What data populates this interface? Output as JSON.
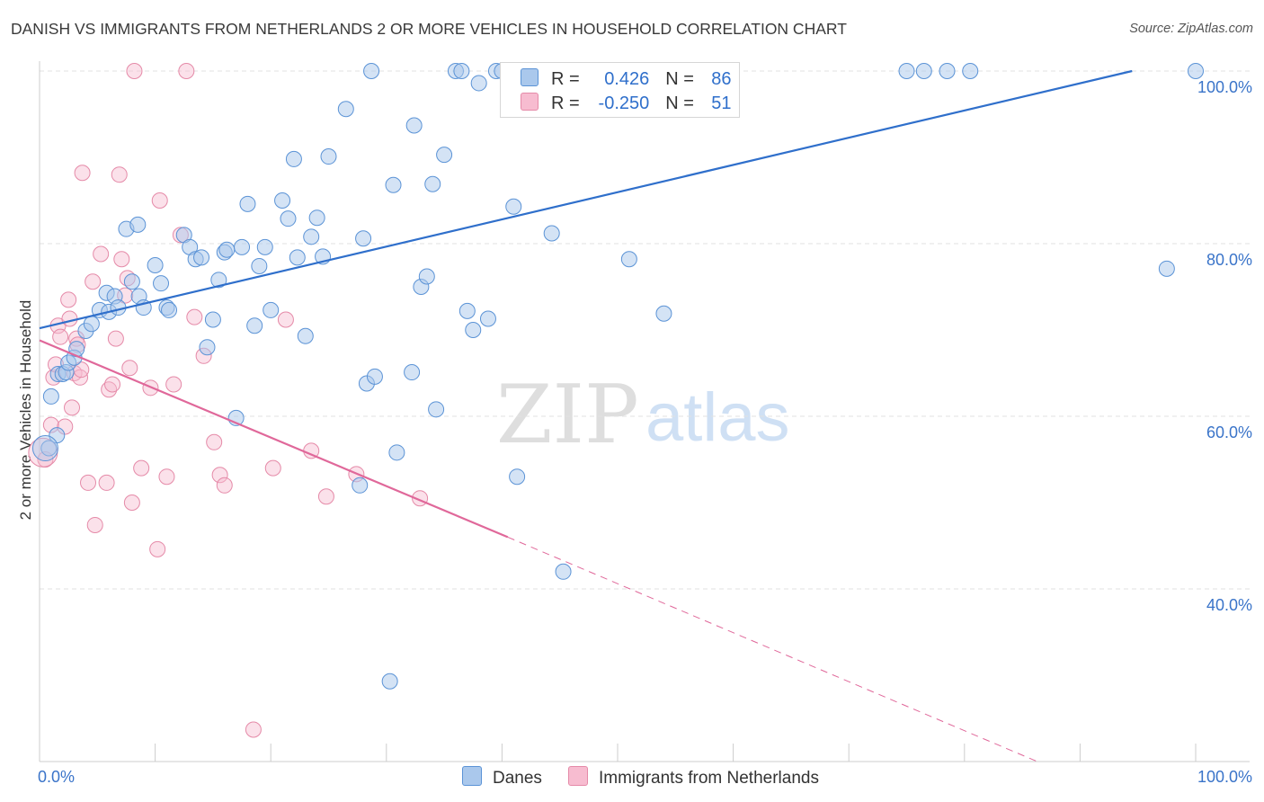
{
  "title": "DANISH VS IMMIGRANTS FROM NETHERLANDS 2 OR MORE VEHICLES IN HOUSEHOLD CORRELATION CHART",
  "source": "Source: ZipAtlas.com",
  "watermark": {
    "zip": "ZIP",
    "atlas": "atlas"
  },
  "legend": {
    "danes": {
      "r_label": "R =",
      "r_value": "0.426",
      "n_label": "N =",
      "n_value": "86"
    },
    "netherlands": {
      "r_label": "R =",
      "r_value": "-0.250",
      "n_label": "N =",
      "n_value": "51"
    }
  },
  "bottom_legend": {
    "danes": "Danes",
    "netherlands": "Immigrants from Netherlands"
  },
  "colors": {
    "danes_fill": "#aac8ec",
    "danes_stroke": "#5b93d6",
    "danes_line": "#2f6fcb",
    "nl_fill": "#f7bcd0",
    "nl_stroke": "#e58aa8",
    "nl_line": "#e0689a",
    "grid": "#e2e2e2",
    "axis": "#cccccc",
    "tick_text": "#3a74c9"
  },
  "chart_data": {
    "type": "scatter",
    "ylabel": "2 or more Vehicles in Household",
    "xlim": [
      0,
      100
    ],
    "ylim": [
      20,
      100
    ],
    "x_tick_labels": [
      {
        "value": 0,
        "label": "0.0%"
      },
      {
        "value": 100,
        "label": "100.0%"
      }
    ],
    "y_tick_labels": [
      {
        "value": 100,
        "label": "100.0%"
      },
      {
        "value": 80,
        "label": "80.0%"
      },
      {
        "value": 60,
        "label": "60.0%"
      },
      {
        "value": 40,
        "label": "40.0%"
      }
    ],
    "grid": true,
    "series": [
      {
        "name": "Danes",
        "trend": {
          "x": [
            0,
            94.5
          ],
          "y": [
            70.2,
            100
          ]
        },
        "points": [
          [
            0.8,
            56.3
          ],
          [
            1,
            62.3
          ],
          [
            1.5,
            57.8
          ],
          [
            1.6,
            64.9
          ],
          [
            2,
            64.9
          ],
          [
            2.3,
            65.1
          ],
          [
            2.5,
            66.2
          ],
          [
            3,
            66.8
          ],
          [
            3.2,
            67.8
          ],
          [
            4,
            69.9
          ],
          [
            4.5,
            70.7
          ],
          [
            5.2,
            72.3
          ],
          [
            5.8,
            74.3
          ],
          [
            6,
            72.1
          ],
          [
            6.5,
            73.9
          ],
          [
            6.8,
            72.6
          ],
          [
            7.5,
            81.7
          ],
          [
            8,
            75.6
          ],
          [
            8.5,
            82.2
          ],
          [
            8.6,
            73.9
          ],
          [
            9,
            72.6
          ],
          [
            10,
            77.5
          ],
          [
            10.5,
            75.4
          ],
          [
            11,
            72.6
          ],
          [
            11.2,
            72.3
          ],
          [
            12.5,
            81
          ],
          [
            13,
            79.6
          ],
          [
            13.5,
            78.2
          ],
          [
            14,
            78.4
          ],
          [
            14.5,
            68
          ],
          [
            15,
            71.2
          ],
          [
            15.5,
            75.8
          ],
          [
            16,
            79
          ],
          [
            16.2,
            79.3
          ],
          [
            17,
            59.8
          ],
          [
            17.5,
            79.6
          ],
          [
            18,
            84.6
          ],
          [
            18.6,
            70.5
          ],
          [
            19,
            77.4
          ],
          [
            19.5,
            79.6
          ],
          [
            20,
            72.3
          ],
          [
            21,
            85
          ],
          [
            21.5,
            82.9
          ],
          [
            22,
            89.8
          ],
          [
            22.3,
            78.4
          ],
          [
            23,
            69.3
          ],
          [
            23.5,
            80.8
          ],
          [
            24,
            83
          ],
          [
            24.5,
            78.5
          ],
          [
            25,
            90.1
          ],
          [
            26.5,
            95.6
          ],
          [
            27.7,
            52
          ],
          [
            28,
            80.6
          ],
          [
            28.3,
            63.8
          ],
          [
            28.7,
            100
          ],
          [
            29,
            64.6
          ],
          [
            30.3,
            29.3
          ],
          [
            30.6,
            86.8
          ],
          [
            30.9,
            55.8
          ],
          [
            32.2,
            65.1
          ],
          [
            32.4,
            93.7
          ],
          [
            33,
            75
          ],
          [
            33.5,
            76.2
          ],
          [
            34,
            86.9
          ],
          [
            34.3,
            60.8
          ],
          [
            35,
            90.3
          ],
          [
            36,
            100
          ],
          [
            36.5,
            100
          ],
          [
            37,
            72.2
          ],
          [
            37.5,
            70
          ],
          [
            38,
            98.6
          ],
          [
            38.8,
            71.3
          ],
          [
            39.5,
            100
          ],
          [
            40,
            100
          ],
          [
            41,
            84.3
          ],
          [
            41.3,
            53
          ],
          [
            44.3,
            81.2
          ],
          [
            45.3,
            42
          ],
          [
            50.5,
            100
          ],
          [
            51,
            78.2
          ],
          [
            54,
            71.9
          ],
          [
            75,
            100
          ],
          [
            76.5,
            100
          ],
          [
            78.5,
            100
          ],
          [
            80.5,
            100
          ],
          [
            97.5,
            77.1
          ],
          [
            100,
            100
          ]
        ]
      },
      {
        "name": "Immigrants from Netherlands",
        "trend": {
          "x": [
            0,
            40.5
          ],
          "y": [
            68.8,
            46
          ]
        },
        "trend_dashed": {
          "x": [
            40.5,
            86.3
          ],
          "y": [
            46,
            20
          ]
        },
        "points": [
          [
            0.5,
            55
          ],
          [
            1,
            59
          ],
          [
            1.2,
            64.5
          ],
          [
            1.4,
            66
          ],
          [
            1.6,
            70.5
          ],
          [
            1.8,
            69.2
          ],
          [
            2.2,
            58.8
          ],
          [
            2.5,
            73.5
          ],
          [
            2.6,
            71.3
          ],
          [
            2.8,
            61
          ],
          [
            3,
            65
          ],
          [
            3.2,
            69
          ],
          [
            3.3,
            68.3
          ],
          [
            3.5,
            64.5
          ],
          [
            3.6,
            65.4
          ],
          [
            3.7,
            88.2
          ],
          [
            4.2,
            52.3
          ],
          [
            4.6,
            75.6
          ],
          [
            4.8,
            47.4
          ],
          [
            5.3,
            78.8
          ],
          [
            5.8,
            52.3
          ],
          [
            6,
            63.1
          ],
          [
            6.3,
            63.7
          ],
          [
            6.6,
            69
          ],
          [
            6.9,
            88
          ],
          [
            7.1,
            78.2
          ],
          [
            7.4,
            74
          ],
          [
            7.6,
            76
          ],
          [
            7.8,
            65.6
          ],
          [
            8,
            50
          ],
          [
            8.2,
            100
          ],
          [
            8.8,
            54
          ],
          [
            9.6,
            63.3
          ],
          [
            10.2,
            44.6
          ],
          [
            10.4,
            85
          ],
          [
            11,
            53
          ],
          [
            11.6,
            63.7
          ],
          [
            12.2,
            81
          ],
          [
            12.7,
            100
          ],
          [
            13.4,
            71.5
          ],
          [
            14.2,
            67
          ],
          [
            15.1,
            57
          ],
          [
            15.6,
            53.2
          ],
          [
            16,
            52
          ],
          [
            18.5,
            23.7
          ],
          [
            20.2,
            54
          ],
          [
            21.3,
            71.2
          ],
          [
            23.5,
            56
          ],
          [
            24.8,
            50.7
          ],
          [
            27.4,
            53.3
          ],
          [
            32.9,
            50.5
          ]
        ]
      }
    ]
  }
}
